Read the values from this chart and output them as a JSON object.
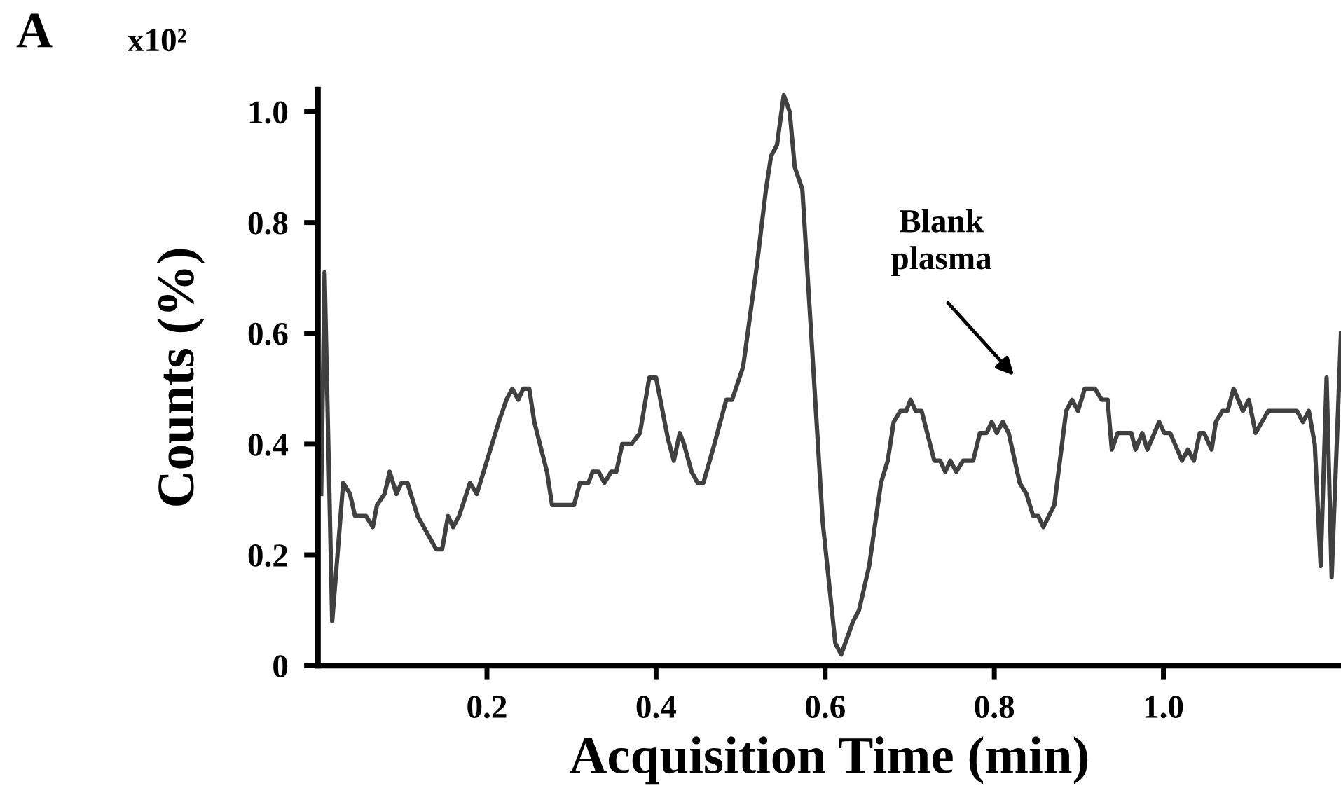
{
  "chart_data": {
    "type": "line",
    "xlabel": "Acquisition Time (min)",
    "ylabel": "Counts (%)",
    "annotations": [
      "A",
      "x10²",
      "Blank\nplasma"
    ],
    "xlim": [
      0,
      1.21
    ],
    "ylim": [
      0,
      1.04
    ],
    "xticks": [
      0.2,
      0.4,
      0.6,
      0.8,
      {
        "value": 1,
        "label": "1.0"
      }
    ],
    "yticks": [
      0,
      0.2,
      0.4,
      0.6,
      0.8,
      {
        "value": 1,
        "label": "1.0"
      }
    ],
    "grid": false,
    "legend": false,
    "marker": "none",
    "line_style": "solid",
    "series": [
      {
        "color": "#404040",
        "x": [
          0.004,
          0.008,
          0.017,
          0.03,
          0.038,
          0.044,
          0.057,
          0.065,
          0.07,
          0.079,
          0.085,
          0.093,
          0.099,
          0.106,
          0.118,
          0.14,
          0.147,
          0.154,
          0.16,
          0.167,
          0.18,
          0.188,
          0.2,
          0.214,
          0.223,
          0.23,
          0.237,
          0.243,
          0.25,
          0.256,
          0.271,
          0.277,
          0.303,
          0.31,
          0.32,
          0.325,
          0.332,
          0.339,
          0.347,
          0.353,
          0.36,
          0.371,
          0.381,
          0.392,
          0.4,
          0.414,
          0.421,
          0.428,
          0.433,
          0.442,
          0.449,
          0.456,
          0.469,
          0.483,
          0.49,
          0.503,
          0.519,
          0.53,
          0.536,
          0.543,
          0.551,
          0.558,
          0.564,
          0.573,
          0.597,
          0.612,
          0.619,
          0.633,
          0.64,
          0.652,
          0.666,
          0.674,
          0.681,
          0.689,
          0.696,
          0.701,
          0.707,
          0.714,
          0.729,
          0.736,
          0.742,
          0.748,
          0.755,
          0.763,
          0.775,
          0.783,
          0.791,
          0.797,
          0.803,
          0.81,
          0.817,
          0.83,
          0.838,
          0.846,
          0.852,
          0.858,
          0.871,
          0.885,
          0.892,
          0.899,
          0.907,
          0.919,
          0.927,
          0.934,
          0.939,
          0.946,
          0.962,
          0.967,
          0.975,
          0.981,
          0.995,
          1.001,
          1.008,
          1.022,
          1.029,
          1.036,
          1.043,
          1.048,
          1.057,
          1.062,
          1.07,
          1.076,
          1.083,
          1.094,
          1.101,
          1.109,
          1.124,
          1.158,
          1.165,
          1.172,
          1.179,
          1.186,
          1.193,
          1.199,
          1.21
        ],
        "values": [
          0.31,
          0.71,
          0.08,
          0.33,
          0.31,
          0.27,
          0.27,
          0.25,
          0.29,
          0.31,
          0.35,
          0.31,
          0.33,
          0.33,
          0.27,
          0.21,
          0.21,
          0.27,
          0.25,
          0.27,
          0.33,
          0.31,
          0.37,
          0.44,
          0.48,
          0.5,
          0.48,
          0.5,
          0.5,
          0.44,
          0.35,
          0.29,
          0.29,
          0.33,
          0.33,
          0.35,
          0.35,
          0.33,
          0.35,
          0.35,
          0.4,
          0.4,
          0.42,
          0.52,
          0.52,
          0.41,
          0.37,
          0.42,
          0.4,
          0.35,
          0.33,
          0.33,
          0.4,
          0.48,
          0.48,
          0.54,
          0.72,
          0.86,
          0.92,
          0.94,
          1.03,
          1.0,
          0.9,
          0.86,
          0.26,
          0.04,
          0.02,
          0.08,
          0.1,
          0.18,
          0.33,
          0.37,
          0.44,
          0.46,
          0.46,
          0.48,
          0.46,
          0.46,
          0.37,
          0.37,
          0.35,
          0.37,
          0.35,
          0.37,
          0.37,
          0.42,
          0.42,
          0.44,
          0.42,
          0.44,
          0.42,
          0.33,
          0.31,
          0.27,
          0.27,
          0.25,
          0.29,
          0.46,
          0.48,
          0.46,
          0.5,
          0.5,
          0.48,
          0.48,
          0.39,
          0.42,
          0.42,
          0.39,
          0.42,
          0.39,
          0.44,
          0.42,
          0.42,
          0.37,
          0.39,
          0.37,
          0.42,
          0.42,
          0.39,
          0.44,
          0.46,
          0.46,
          0.5,
          0.46,
          0.48,
          0.42,
          0.46,
          0.46,
          0.44,
          0.46,
          0.4,
          0.18,
          0.52,
          0.16,
          0.6
        ]
      }
    ]
  }
}
